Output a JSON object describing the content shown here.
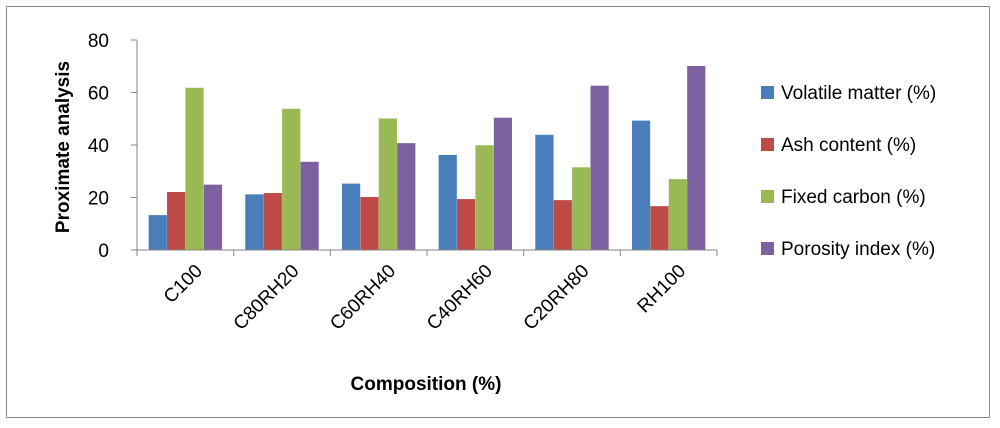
{
  "chart_data": {
    "type": "bar",
    "title": "",
    "xlabel": "Composition (%)",
    "ylabel": "Proximate analysis",
    "ylim": [
      0,
      80
    ],
    "yticks": [
      0,
      20,
      40,
      60,
      80
    ],
    "grid": false,
    "legend_position": "right",
    "categories": [
      "C100",
      "C80RH20",
      "C60RH40",
      "C40RH60",
      "C20RH80",
      "RH100"
    ],
    "series": [
      {
        "name": "Volatile matter (%)",
        "color": "#4a7ebb",
        "values": [
          13.3,
          21.2,
          25.3,
          36.2,
          43.9,
          49.3
        ]
      },
      {
        "name": "Ash content (%)",
        "color": "#be4b48",
        "values": [
          22.1,
          21.7,
          20.2,
          19.4,
          19.0,
          16.7
        ]
      },
      {
        "name": "Fixed carbon (%)",
        "color": "#98b954",
        "values": [
          61.8,
          53.8,
          50.1,
          39.9,
          31.5,
          27.0
        ]
      },
      {
        "name": "Porosity index (%)",
        "color": "#7d60a0",
        "values": [
          24.9,
          33.6,
          40.7,
          50.4,
          62.6,
          70.1
        ]
      }
    ]
  }
}
